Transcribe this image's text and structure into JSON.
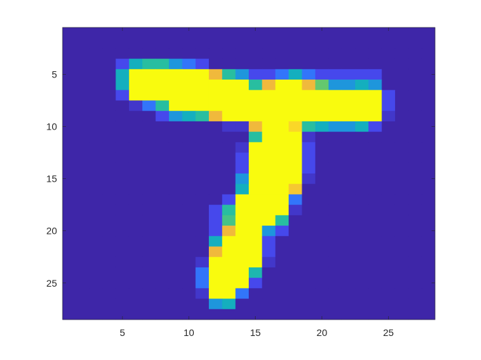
{
  "chart_data": {
    "type": "heatmap",
    "title": "",
    "xlabel": "",
    "ylabel": "",
    "xlim": [
      0.5,
      28.5
    ],
    "ylim": [
      0.5,
      28.5
    ],
    "y_reversed": true,
    "grid": false,
    "colormap": "parula",
    "color_range": [
      0,
      1
    ],
    "xticks": [
      5,
      10,
      15,
      20,
      25
    ],
    "yticks": [
      5,
      10,
      15,
      20,
      25
    ],
    "xtick_labels": [
      "5",
      "10",
      "15",
      "20",
      "25"
    ],
    "ytick_labels": [
      "5",
      "10",
      "15",
      "20",
      "25"
    ],
    "image": [
      [
        0,
        0,
        0,
        0,
        0,
        0,
        0,
        0,
        0,
        0,
        0,
        0,
        0,
        0,
        0,
        0,
        0,
        0,
        0,
        0,
        0,
        0,
        0,
        0,
        0,
        0,
        0,
        0
      ],
      [
        0,
        0,
        0,
        0,
        0,
        0,
        0,
        0,
        0,
        0,
        0,
        0,
        0,
        0,
        0,
        0,
        0,
        0,
        0,
        0,
        0,
        0,
        0,
        0,
        0,
        0,
        0,
        0
      ],
      [
        0,
        0,
        0,
        0,
        0,
        0,
        0,
        0,
        0,
        0,
        0,
        0,
        0,
        0,
        0,
        0,
        0,
        0,
        0,
        0,
        0,
        0,
        0,
        0,
        0,
        0,
        0,
        0
      ],
      [
        0,
        0,
        0,
        0,
        0.1,
        0.4,
        0.5,
        0.5,
        0.3,
        0.2,
        0.1,
        0,
        0,
        0,
        0,
        0,
        0,
        0,
        0,
        0,
        0,
        0,
        0,
        0,
        0,
        0,
        0,
        0
      ],
      [
        0,
        0,
        0,
        0,
        0.4,
        1,
        1,
        1,
        1,
        1,
        1,
        0.8,
        0.5,
        0.3,
        0.1,
        0.1,
        0.2,
        0.4,
        0.2,
        0.1,
        0.1,
        0.1,
        0.1,
        0.1,
        0,
        0,
        0,
        0
      ],
      [
        0,
        0,
        0,
        0,
        0.4,
        1,
        1,
        1,
        1,
        1,
        1,
        1,
        1,
        1,
        0.5,
        0.8,
        1,
        1,
        0.8,
        0.6,
        0.3,
        0.3,
        0.4,
        0.3,
        0,
        0,
        0,
        0
      ],
      [
        0,
        0,
        0,
        0,
        0.1,
        1,
        1,
        1,
        1,
        1,
        1,
        1,
        1,
        1,
        1,
        1,
        1,
        1,
        1,
        1,
        1,
        1,
        1,
        1,
        0.1,
        0,
        0,
        0
      ],
      [
        0,
        0,
        0,
        0,
        0,
        0.05,
        0.2,
        0.5,
        1,
        1,
        1,
        1,
        1,
        1,
        1,
        1,
        1,
        1,
        1,
        1,
        1,
        1,
        1,
        1,
        0.1,
        0,
        0,
        0
      ],
      [
        0,
        0,
        0,
        0,
        0,
        0,
        0,
        0.1,
        0.3,
        0.4,
        0.5,
        0.8,
        1,
        1,
        1,
        1,
        1,
        1,
        1,
        1,
        1,
        1,
        1,
        1,
        0.05,
        0,
        0,
        0
      ],
      [
        0,
        0,
        0,
        0,
        0,
        0,
        0,
        0,
        0,
        0,
        0,
        0,
        0.05,
        0.05,
        0.8,
        1,
        1,
        0.9,
        0.5,
        0.4,
        0.3,
        0.3,
        0.4,
        0.1,
        0,
        0,
        0,
        0
      ],
      [
        0,
        0,
        0,
        0,
        0,
        0,
        0,
        0,
        0,
        0,
        0,
        0,
        0,
        0,
        0.5,
        1,
        1,
        1,
        0.05,
        0,
        0,
        0,
        0,
        0,
        0,
        0,
        0,
        0
      ],
      [
        0,
        0,
        0,
        0,
        0,
        0,
        0,
        0,
        0,
        0,
        0,
        0,
        0,
        0.05,
        1,
        1,
        1,
        1,
        0.1,
        0,
        0,
        0,
        0,
        0,
        0,
        0,
        0,
        0
      ],
      [
        0,
        0,
        0,
        0,
        0,
        0,
        0,
        0,
        0,
        0,
        0,
        0,
        0,
        0.1,
        1,
        1,
        1,
        1,
        0.1,
        0,
        0,
        0,
        0,
        0,
        0,
        0,
        0,
        0
      ],
      [
        0,
        0,
        0,
        0,
        0,
        0,
        0,
        0,
        0,
        0,
        0,
        0,
        0,
        0.1,
        1,
        1,
        1,
        1,
        0.1,
        0,
        0,
        0,
        0,
        0,
        0,
        0,
        0,
        0
      ],
      [
        0,
        0,
        0,
        0,
        0,
        0,
        0,
        0,
        0,
        0,
        0,
        0,
        0,
        0.3,
        1,
        1,
        1,
        1,
        0.05,
        0,
        0,
        0,
        0,
        0,
        0,
        0,
        0,
        0
      ],
      [
        0,
        0,
        0,
        0,
        0,
        0,
        0,
        0,
        0,
        0,
        0,
        0,
        0,
        0.4,
        1,
        1,
        1,
        0.85,
        0,
        0,
        0,
        0,
        0,
        0,
        0,
        0,
        0,
        0
      ],
      [
        0,
        0,
        0,
        0,
        0,
        0,
        0,
        0,
        0,
        0,
        0,
        0,
        0.1,
        1,
        1,
        1,
        1,
        0.2,
        0,
        0,
        0,
        0,
        0,
        0,
        0,
        0,
        0,
        0
      ],
      [
        0,
        0,
        0,
        0,
        0,
        0,
        0,
        0,
        0,
        0,
        0,
        0.1,
        0.5,
        1,
        1,
        1,
        1,
        0.05,
        0,
        0,
        0,
        0,
        0,
        0,
        0,
        0,
        0,
        0
      ],
      [
        0,
        0,
        0,
        0,
        0,
        0,
        0,
        0,
        0,
        0,
        0,
        0.1,
        0.55,
        1,
        1,
        1,
        0.5,
        0,
        0,
        0,
        0,
        0,
        0,
        0,
        0,
        0,
        0,
        0
      ],
      [
        0,
        0,
        0,
        0,
        0,
        0,
        0,
        0,
        0,
        0,
        0,
        0.1,
        0.8,
        1,
        1,
        0.3,
        0.1,
        0,
        0,
        0,
        0,
        0,
        0,
        0,
        0,
        0,
        0,
        0
      ],
      [
        0,
        0,
        0,
        0,
        0,
        0,
        0,
        0,
        0,
        0,
        0,
        0.4,
        1,
        1,
        1,
        0.1,
        0,
        0,
        0,
        0,
        0,
        0,
        0,
        0,
        0,
        0,
        0,
        0
      ],
      [
        0,
        0,
        0,
        0,
        0,
        0,
        0,
        0,
        0,
        0,
        0,
        0.8,
        1,
        1,
        1,
        0.1,
        0,
        0,
        0,
        0,
        0,
        0,
        0,
        0,
        0,
        0,
        0,
        0
      ],
      [
        0,
        0,
        0,
        0,
        0,
        0,
        0,
        0,
        0,
        0,
        0.05,
        1,
        1,
        1,
        1,
        0.05,
        0,
        0,
        0,
        0,
        0,
        0,
        0,
        0,
        0,
        0,
        0,
        0
      ],
      [
        0,
        0,
        0,
        0,
        0,
        0,
        0,
        0,
        0,
        0,
        0.2,
        1,
        1,
        1,
        0.45,
        0,
        0,
        0,
        0,
        0,
        0,
        0,
        0,
        0,
        0,
        0,
        0,
        0
      ],
      [
        0,
        0,
        0,
        0,
        0,
        0,
        0,
        0,
        0,
        0,
        0.2,
        1,
        1,
        1,
        0.1,
        0,
        0,
        0,
        0,
        0,
        0,
        0,
        0,
        0,
        0,
        0,
        0,
        0
      ],
      [
        0,
        0,
        0,
        0,
        0,
        0,
        0,
        0,
        0,
        0,
        0.05,
        1,
        1,
        0.2,
        0,
        0,
        0,
        0,
        0,
        0,
        0,
        0,
        0,
        0,
        0,
        0,
        0,
        0
      ],
      [
        0,
        0,
        0,
        0,
        0,
        0,
        0,
        0,
        0,
        0,
        0,
        0.3,
        0.4,
        0,
        0,
        0,
        0,
        0,
        0,
        0,
        0,
        0,
        0,
        0,
        0,
        0,
        0,
        0
      ],
      [
        0,
        0,
        0,
        0,
        0,
        0,
        0,
        0,
        0,
        0,
        0,
        0,
        0,
        0,
        0,
        0,
        0,
        0,
        0,
        0,
        0,
        0,
        0,
        0,
        0,
        0,
        0,
        0
      ]
    ]
  }
}
